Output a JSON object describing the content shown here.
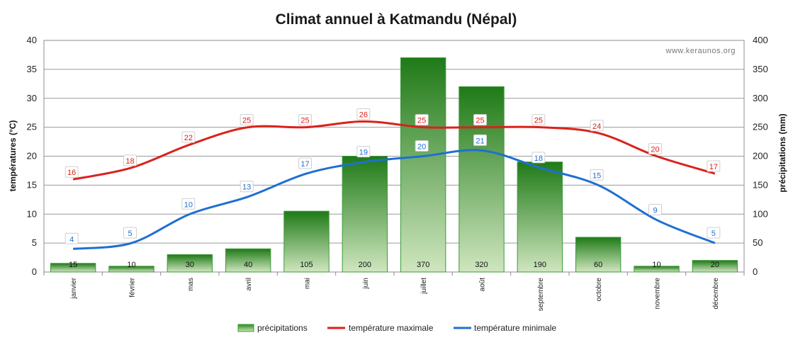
{
  "chart_data": {
    "type": "bar",
    "title": "Climat annuel à Katmandu (Népal)",
    "watermark": "www.keraunos.org",
    "categories": [
      "janvier",
      "février",
      "mas",
      "avril",
      "mai",
      "juin",
      "juillet",
      "août",
      "septembre",
      "octobre",
      "novembre",
      "décembre"
    ],
    "y_left": {
      "label": "températures (°C)",
      "range": [
        0,
        40
      ],
      "ticks": [
        0,
        5,
        10,
        15,
        20,
        25,
        30,
        35,
        40
      ]
    },
    "y_right": {
      "label": "précipitations (mm)",
      "range": [
        0,
        400
      ],
      "ticks": [
        0,
        50,
        100,
        150,
        200,
        250,
        300,
        350,
        400
      ]
    },
    "grid": true,
    "legend_position": "bottom",
    "series": [
      {
        "name": "précipitations",
        "type": "bar",
        "axis": "right",
        "color": "#2e7d1e",
        "values": [
          15,
          10,
          30,
          40,
          105,
          200,
          370,
          320,
          190,
          60,
          10,
          20
        ]
      },
      {
        "name": "température maximale",
        "type": "line",
        "axis": "left",
        "color": "#d9221c",
        "values": [
          16,
          18,
          22,
          25,
          25,
          26,
          25,
          25,
          25,
          24,
          20,
          17
        ]
      },
      {
        "name": "température minimale",
        "type": "line",
        "axis": "left",
        "color": "#1f6fd1",
        "values": [
          4,
          5,
          10,
          13,
          17,
          19,
          20,
          21,
          18,
          15,
          9,
          5
        ]
      }
    ]
  }
}
